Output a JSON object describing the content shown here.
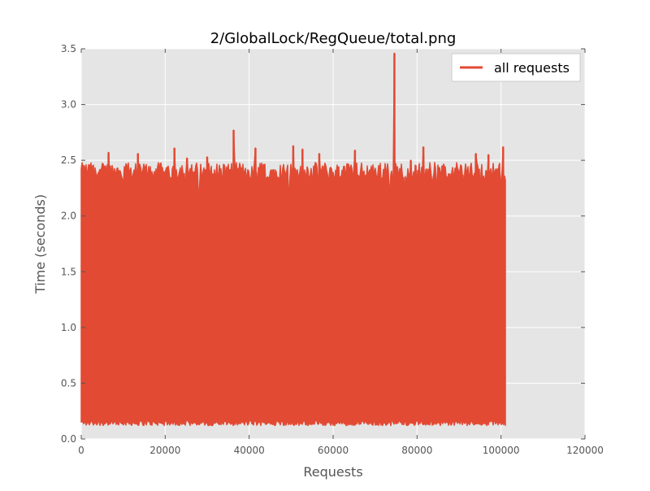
{
  "chart_data": {
    "type": "line",
    "title": "2/GlobalLock/RegQueue/total.png",
    "xlabel": "Requests",
    "ylabel": "Time (seconds)",
    "xlim": [
      0,
      120000
    ],
    "ylim": [
      0,
      3.5
    ],
    "xticks": [
      0,
      20000,
      40000,
      60000,
      80000,
      100000,
      120000
    ],
    "xtick_labels": [
      "0",
      "20000",
      "40000",
      "60000",
      "80000",
      "100000",
      "120000"
    ],
    "yticks": [
      0,
      0.5,
      1.0,
      1.5,
      2.0,
      2.5,
      3.0,
      3.5
    ],
    "ytick_labels": [
      "0.0",
      "0.5",
      "1.0",
      "1.5",
      "2.0",
      "2.5",
      "3.0",
      "3.5"
    ],
    "grid": true,
    "legend_position": "top-right",
    "series": [
      {
        "name": "all requests",
        "color": "#e24a33",
        "x_range": [
          0,
          101000
        ],
        "y_low": 0.1,
        "y_typical_high": 2.4,
        "peaks": [
          {
            "x": 400,
            "y": 2.43
          },
          {
            "x": 2200,
            "y": 2.46
          },
          {
            "x": 6500,
            "y": 2.57
          },
          {
            "x": 13500,
            "y": 2.56
          },
          {
            "x": 22200,
            "y": 2.61
          },
          {
            "x": 25200,
            "y": 2.52
          },
          {
            "x": 30000,
            "y": 2.53
          },
          {
            "x": 36300,
            "y": 2.77
          },
          {
            "x": 41500,
            "y": 2.61
          },
          {
            "x": 50500,
            "y": 2.63
          },
          {
            "x": 52700,
            "y": 2.6
          },
          {
            "x": 56700,
            "y": 2.56
          },
          {
            "x": 65200,
            "y": 2.59
          },
          {
            "x": 74600,
            "y": 3.46
          },
          {
            "x": 78500,
            "y": 2.5
          },
          {
            "x": 81500,
            "y": 2.62
          },
          {
            "x": 86000,
            "y": 2.45
          },
          {
            "x": 94000,
            "y": 2.56
          },
          {
            "x": 97000,
            "y": 2.55
          },
          {
            "x": 100500,
            "y": 2.62
          }
        ]
      }
    ]
  }
}
